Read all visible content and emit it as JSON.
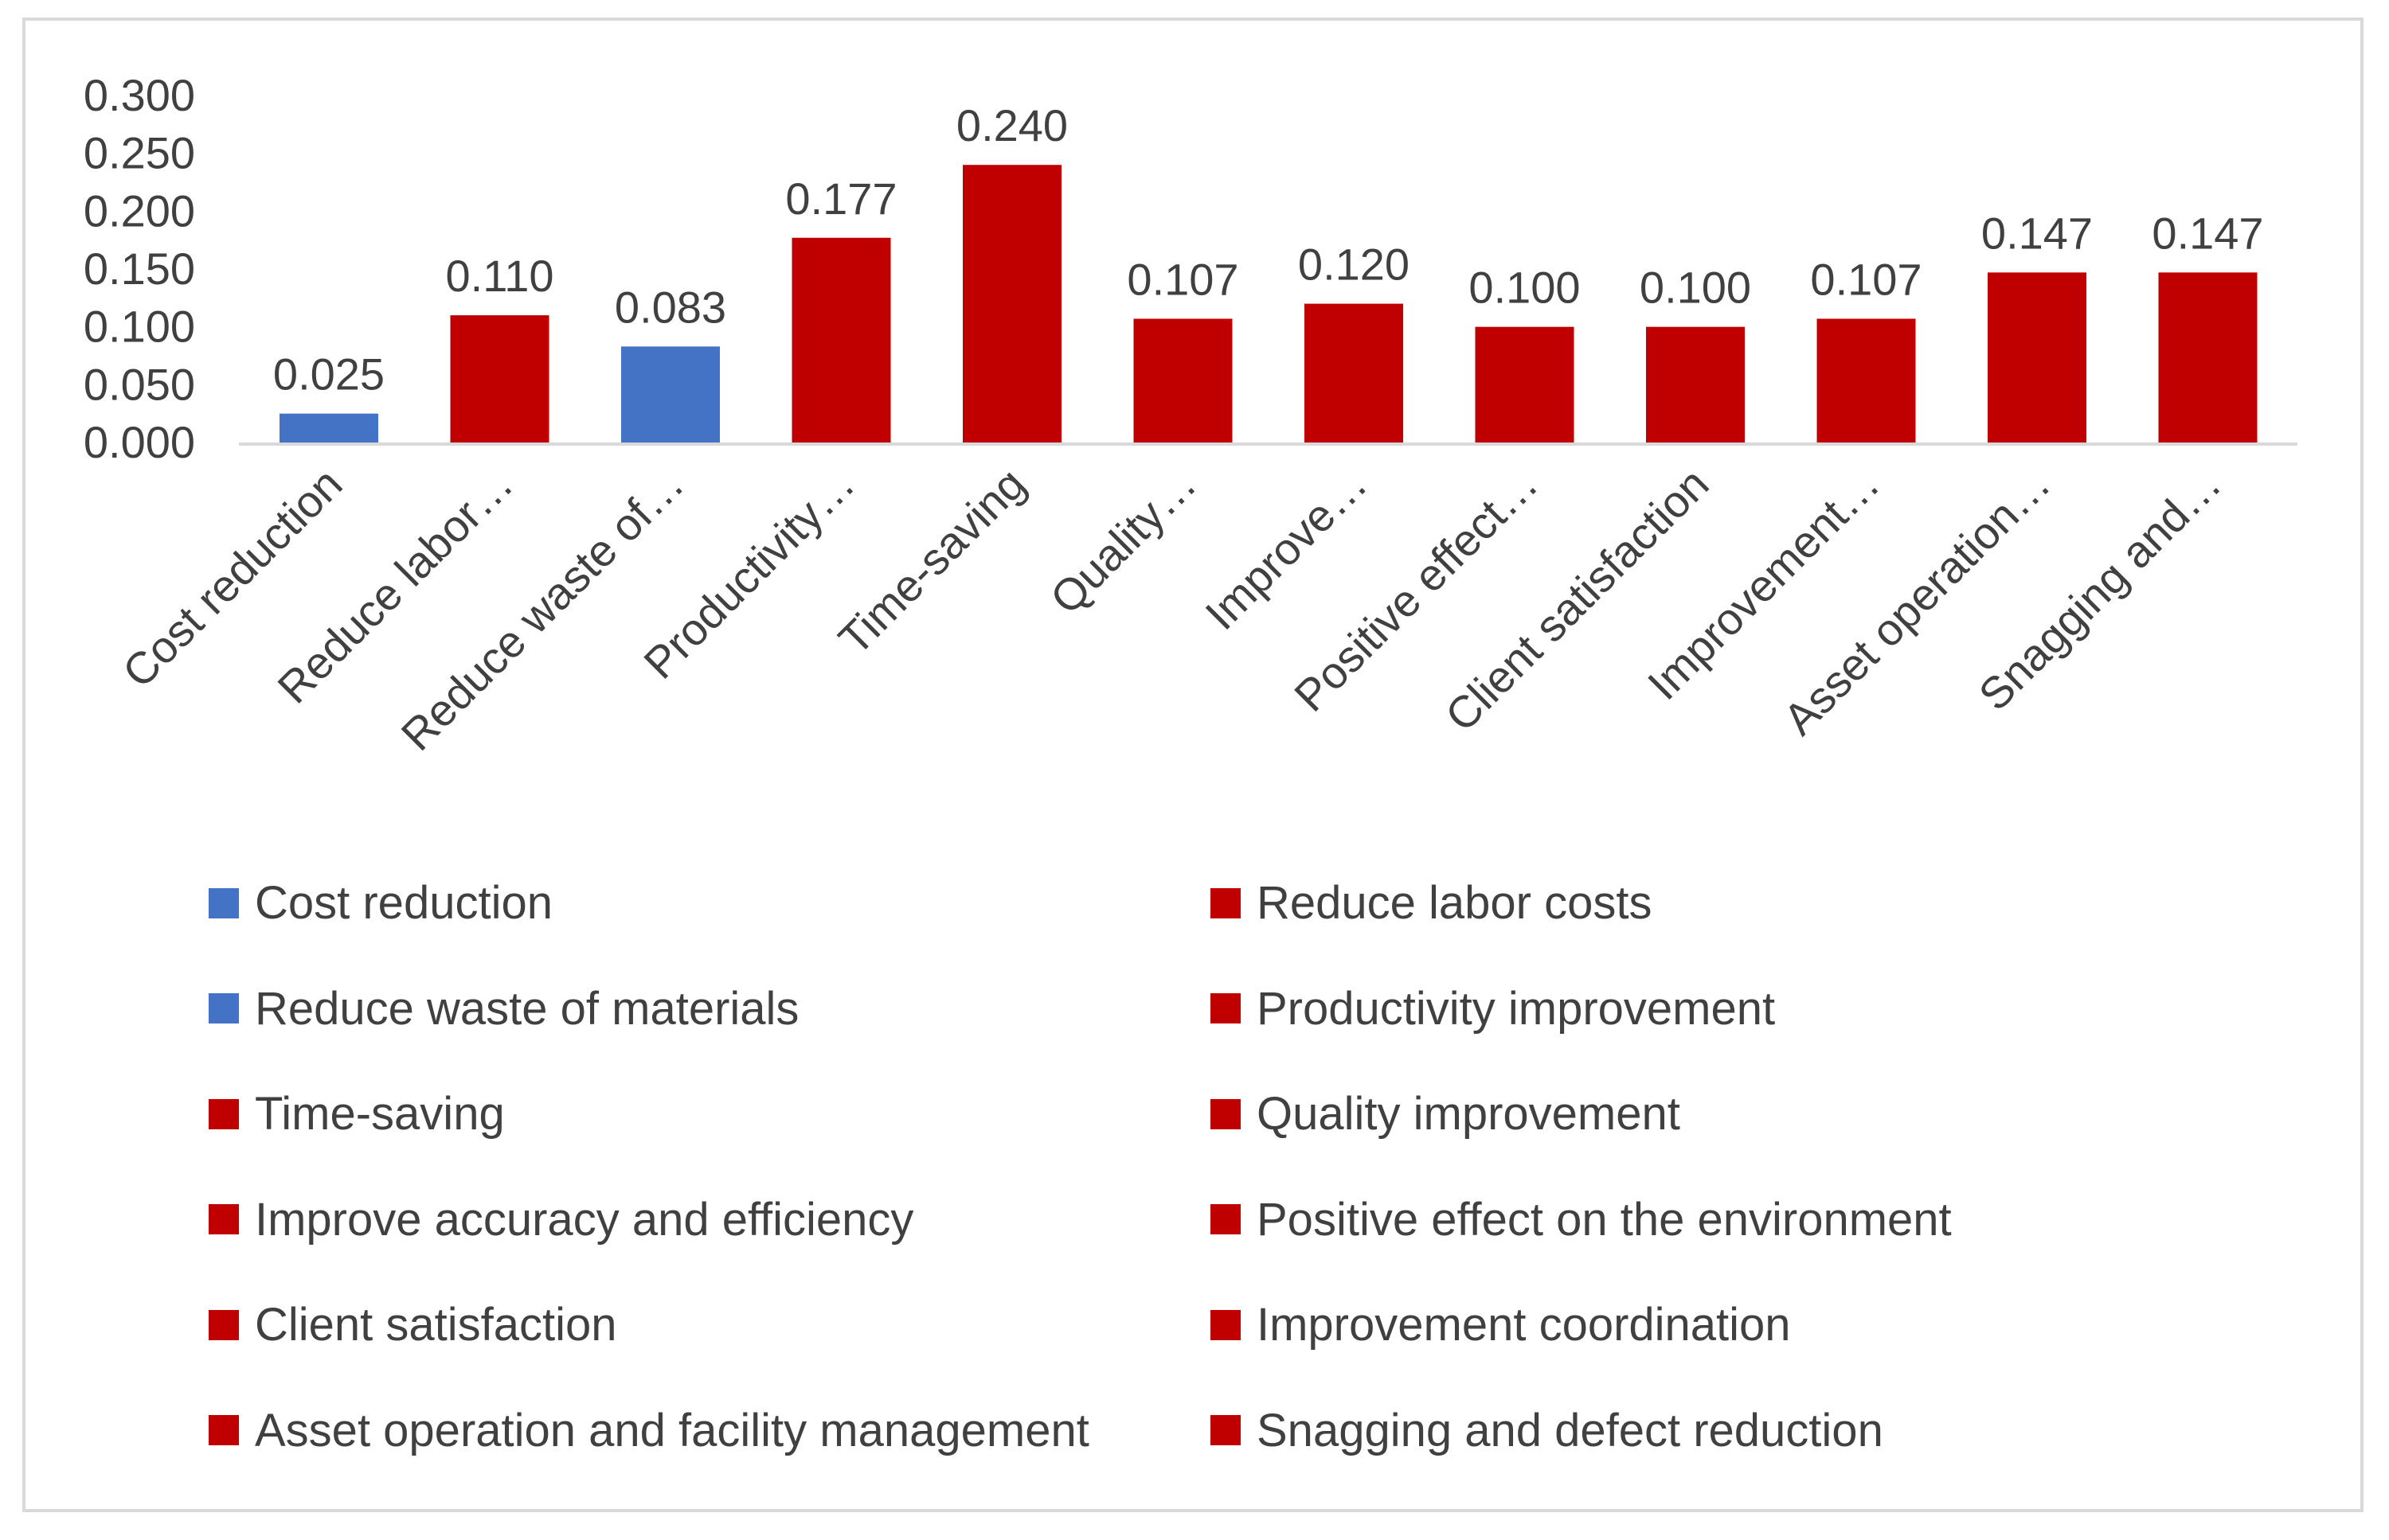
{
  "chart_data": {
    "type": "bar",
    "title": "",
    "xlabel": "",
    "ylabel": "",
    "ylim": [
      0,
      0.3
    ],
    "yticks": [
      "0.000",
      "0.050",
      "0.100",
      "0.150",
      "0.200",
      "0.250",
      "0.300"
    ],
    "grid": false,
    "categories": [
      "Cost reduction",
      "Reduce labor…",
      "Reduce waste of…",
      "Productivity…",
      "Time-saving",
      "Quality…",
      "Improve…",
      "Positive effect…",
      "Client satisfaction",
      "Improvement…",
      "Asset operation…",
      "Snagging and…"
    ],
    "values": [
      0.025,
      0.11,
      0.083,
      0.177,
      0.24,
      0.107,
      0.12,
      0.1,
      0.1,
      0.107,
      0.147,
      0.147
    ],
    "data_labels": [
      "0.025",
      "0.110",
      "0.083",
      "0.177",
      "0.240",
      "0.107",
      "0.120",
      "0.100",
      "0.100",
      "0.107",
      "0.147",
      "0.147"
    ],
    "bar_colors": [
      "#4472c4",
      "#c00000",
      "#4472c4",
      "#c00000",
      "#c00000",
      "#c00000",
      "#c00000",
      "#c00000",
      "#c00000",
      "#c00000",
      "#c00000",
      "#c00000"
    ],
    "legend_position": "bottom",
    "legend": [
      {
        "label": "Cost reduction",
        "color": "#4472c4"
      },
      {
        "label": "Reduce labor costs",
        "color": "#c00000"
      },
      {
        "label": "Reduce waste of materials",
        "color": "#4472c4"
      },
      {
        "label": "Productivity improvement",
        "color": "#c00000"
      },
      {
        "label": "Time-saving",
        "color": "#c00000"
      },
      {
        "label": "Quality improvement",
        "color": "#c00000"
      },
      {
        "label": "Improve accuracy and efficiency",
        "color": "#c00000"
      },
      {
        "label": "Positive effect on the environment",
        "color": "#c00000"
      },
      {
        "label": "Client satisfaction",
        "color": "#c00000"
      },
      {
        "label": "Improvement coordination",
        "color": "#c00000"
      },
      {
        "label": "Asset operation and facility management",
        "color": "#c00000"
      },
      {
        "label": "Snagging and defect reduction",
        "color": "#c00000"
      }
    ]
  }
}
